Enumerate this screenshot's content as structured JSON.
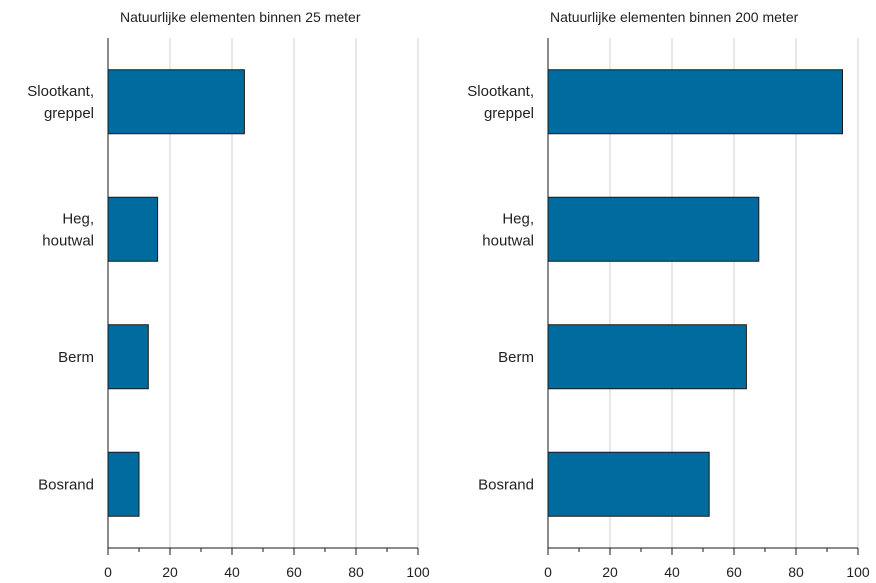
{
  "chart_data": [
    {
      "type": "bar",
      "orientation": "horizontal",
      "title": "Natuurlijke elementen binnen 25 meter",
      "categories": [
        [
          "Slootkant,",
          "greppel"
        ],
        [
          "Heg,",
          "houtwal"
        ],
        [
          "Berm"
        ],
        [
          "Bosrand"
        ]
      ],
      "values": [
        44,
        16,
        13,
        10
      ],
      "xlim": [
        0,
        100
      ],
      "xticks": [
        "0",
        "20",
        "40",
        "60",
        "80",
        "100"
      ],
      "grid": true,
      "bar_color": "#006b9e"
    },
    {
      "type": "bar",
      "orientation": "horizontal",
      "title": "Natuurlijke elementen binnen 200 meter",
      "categories": [
        [
          "Slootkant,",
          "greppel"
        ],
        [
          "Heg,",
          "houtwal"
        ],
        [
          "Berm"
        ],
        [
          "Bosrand"
        ]
      ],
      "values": [
        95,
        68,
        64,
        52
      ],
      "xlim": [
        0,
        100
      ],
      "xticks": [
        "0",
        "20",
        "40",
        "60",
        "80",
        "100"
      ],
      "grid": true,
      "bar_color": "#006b9e"
    }
  ]
}
